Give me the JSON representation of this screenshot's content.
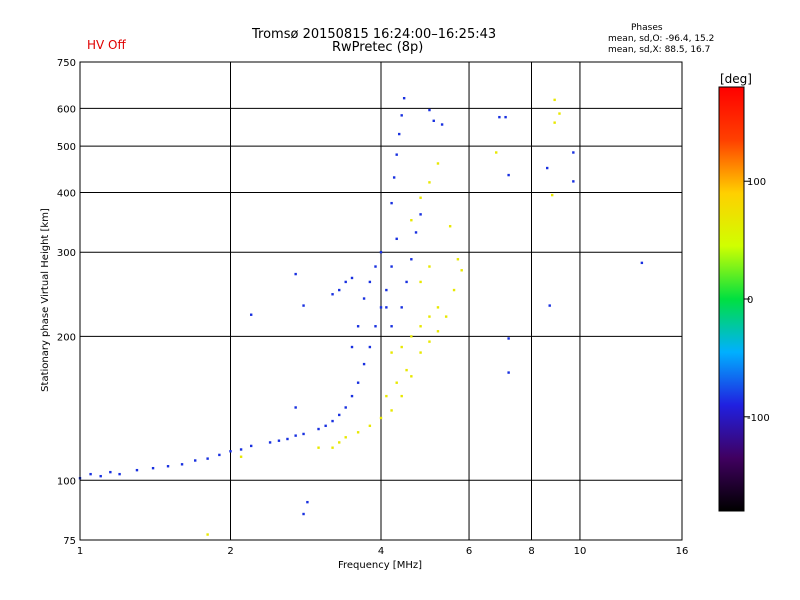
{
  "header": {
    "hv_status": "HV Off",
    "title_line1": "Tromsø 20150815 16:24:00–16:25:43",
    "title_line2": "RwPretec (8p)",
    "phases_title": "Phases",
    "phases_o": "mean, sd,O: -96.4, 15.2",
    "phases_x": "mean, sd,X:  88.5, 16.7"
  },
  "colors": {
    "o_mode": "#1830e0",
    "x_mode": "#e8e800",
    "scale_stops": [
      "#000000",
      "#400060",
      "#2020e0",
      "#00b0ff",
      "#00e040",
      "#d0ff00",
      "#ffd000",
      "#ff4000",
      "#ff0000"
    ]
  },
  "chart_data": {
    "type": "scatter",
    "title": "Tromsø 20150815 16:24:00–16:25:43",
    "subtitle": "RwPretec (8p)",
    "xlabel": "Frequency [MHz]",
    "ylabel": "Stationary phase Virtual Height [km]",
    "x_scale": "log",
    "y_scale": "log",
    "xlim": [
      1,
      16
    ],
    "ylim": [
      75,
      750
    ],
    "x_ticks": [
      1,
      2,
      4,
      6,
      8,
      10,
      16
    ],
    "y_ticks": [
      75,
      100,
      200,
      300,
      400,
      500,
      600,
      750
    ],
    "grid": true,
    "colorbar": {
      "label": "[deg]",
      "range": [
        -180,
        180
      ],
      "ticks": [
        100,
        0,
        -100
      ]
    },
    "series": [
      {
        "name": "O-mode",
        "mean_phase": -96.4,
        "sd_phase": 15.2,
        "points": [
          [
            1.0,
            101
          ],
          [
            1.05,
            103
          ],
          [
            1.1,
            102
          ],
          [
            1.15,
            104
          ],
          [
            1.2,
            103
          ],
          [
            1.3,
            105
          ],
          [
            1.4,
            106
          ],
          [
            1.5,
            107
          ],
          [
            1.6,
            108
          ],
          [
            1.7,
            110
          ],
          [
            1.8,
            111
          ],
          [
            1.9,
            113
          ],
          [
            2.0,
            115
          ],
          [
            2.1,
            116
          ],
          [
            2.2,
            118
          ],
          [
            2.4,
            120
          ],
          [
            2.5,
            121
          ],
          [
            2.6,
            122
          ],
          [
            2.7,
            124
          ],
          [
            2.8,
            125
          ],
          [
            3.0,
            128
          ],
          [
            3.1,
            130
          ],
          [
            3.2,
            133
          ],
          [
            3.3,
            137
          ],
          [
            3.4,
            142
          ],
          [
            3.5,
            150
          ],
          [
            3.6,
            160
          ],
          [
            3.7,
            175
          ],
          [
            3.8,
            190
          ],
          [
            3.9,
            210
          ],
          [
            4.0,
            230
          ],
          [
            4.1,
            250
          ],
          [
            4.2,
            280
          ],
          [
            4.3,
            320
          ],
          [
            4.2,
            380
          ],
          [
            4.25,
            430
          ],
          [
            4.3,
            480
          ],
          [
            4.35,
            530
          ],
          [
            4.4,
            580
          ],
          [
            4.45,
            630
          ],
          [
            3.5,
            190
          ],
          [
            3.6,
            210
          ],
          [
            3.7,
            240
          ],
          [
            3.8,
            260
          ],
          [
            3.9,
            280
          ],
          [
            4.0,
            300
          ],
          [
            4.1,
            230
          ],
          [
            4.2,
            210
          ],
          [
            4.4,
            230
          ],
          [
            4.5,
            260
          ],
          [
            4.6,
            290
          ],
          [
            4.7,
            330
          ],
          [
            4.8,
            360
          ],
          [
            3.2,
            245
          ],
          [
            3.3,
            250
          ],
          [
            3.4,
            260
          ],
          [
            3.5,
            265
          ],
          [
            2.7,
            270
          ],
          [
            2.8,
            232
          ],
          [
            2.2,
            222
          ],
          [
            5.0,
            595
          ],
          [
            5.1,
            565
          ],
          [
            5.3,
            555
          ],
          [
            6.9,
            575
          ],
          [
            7.1,
            575
          ],
          [
            7.2,
            435
          ],
          [
            8.6,
            450
          ],
          [
            9.7,
            485
          ],
          [
            9.7,
            422
          ],
          [
            8.7,
            232
          ],
          [
            7.2,
            198
          ],
          [
            7.2,
            168
          ],
          [
            13.3,
            285
          ],
          [
            2.7,
            142
          ],
          [
            2.85,
            90
          ],
          [
            2.8,
            85
          ]
        ]
      },
      {
        "name": "X-mode",
        "mean_phase": 88.5,
        "sd_phase": 16.7,
        "points": [
          [
            3.2,
            117
          ],
          [
            3.3,
            120
          ],
          [
            3.4,
            123
          ],
          [
            3.6,
            126
          ],
          [
            3.8,
            130
          ],
          [
            4.0,
            135
          ],
          [
            4.2,
            140
          ],
          [
            4.4,
            150
          ],
          [
            4.6,
            165
          ],
          [
            4.8,
            185
          ],
          [
            5.0,
            195
          ],
          [
            5.2,
            205
          ],
          [
            5.4,
            220
          ],
          [
            5.6,
            250
          ],
          [
            5.7,
            290
          ],
          [
            4.2,
            185
          ],
          [
            4.4,
            190
          ],
          [
            4.6,
            200
          ],
          [
            4.8,
            210
          ],
          [
            5.0,
            220
          ],
          [
            5.2,
            230
          ],
          [
            4.8,
            260
          ],
          [
            5.0,
            280
          ],
          [
            4.6,
            350
          ],
          [
            4.8,
            390
          ],
          [
            5.0,
            420
          ],
          [
            5.2,
            460
          ],
          [
            5.5,
            340
          ],
          [
            4.1,
            150
          ],
          [
            4.3,
            160
          ],
          [
            4.5,
            170
          ],
          [
            8.9,
            625
          ],
          [
            8.9,
            560
          ],
          [
            9.1,
            585
          ],
          [
            8.8,
            395
          ],
          [
            6.8,
            485
          ],
          [
            5.8,
            275
          ],
          [
            1.8,
            77
          ],
          [
            2.1,
            112
          ],
          [
            3.0,
            117
          ]
        ]
      }
    ]
  }
}
